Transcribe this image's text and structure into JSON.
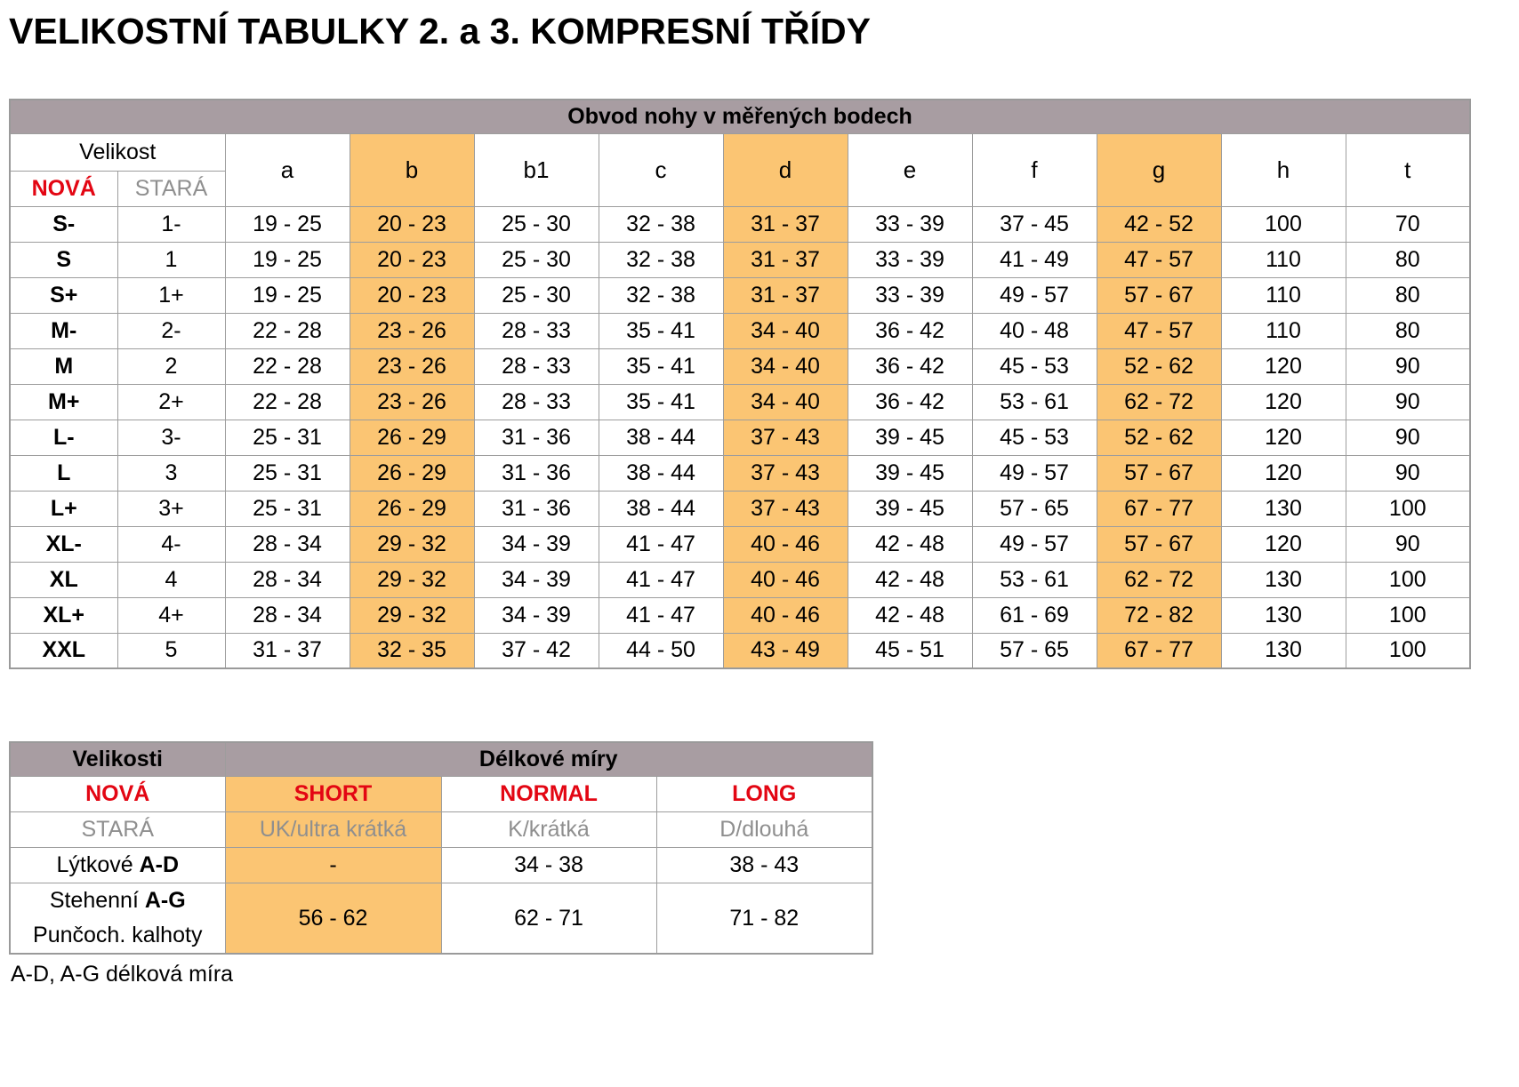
{
  "page": {
    "title": "VELIKOSTNÍ TABULKY 2. a 3. KOMPRESNÍ TŘÍDY",
    "footnote": "A-D, A-G délková míra"
  },
  "colors": {
    "header_bg": "#a89da2",
    "highlight_bg": "#fbc573",
    "accent_red": "#e30613",
    "muted_gray": "#8f8f8f",
    "grid_border": "#9d9d9d"
  },
  "size_table": {
    "caption": "Obvod nohy v měřených bodech",
    "velikost_label": "Velikost",
    "nova_label": "NOVÁ",
    "stara_label": "STARÁ",
    "measure_columns": [
      "a",
      "b",
      "b1",
      "c",
      "d",
      "e",
      "f",
      "g",
      "h",
      "t"
    ],
    "highlighted_columns": [
      "b",
      "d",
      "g"
    ],
    "rows": [
      {
        "nova": "S-",
        "stara": "1-",
        "values": [
          "19 - 25",
          "20 - 23",
          "25 - 30",
          "32 - 38",
          "31 - 37",
          "33 - 39",
          "37 - 45",
          "42 - 52",
          "100",
          "70"
        ]
      },
      {
        "nova": "S",
        "stara": "1",
        "values": [
          "19 - 25",
          "20 - 23",
          "25 - 30",
          "32 - 38",
          "31 - 37",
          "33 - 39",
          "41 - 49",
          "47 - 57",
          "110",
          "80"
        ]
      },
      {
        "nova": "S+",
        "stara": "1+",
        "values": [
          "19 - 25",
          "20 - 23",
          "25 - 30",
          "32 - 38",
          "31 - 37",
          "33 - 39",
          "49 - 57",
          "57 - 67",
          "110",
          "80"
        ]
      },
      {
        "nova": "M-",
        "stara": "2-",
        "values": [
          "22 - 28",
          "23 - 26",
          "28 - 33",
          "35 - 41",
          "34 - 40",
          "36 - 42",
          "40 - 48",
          "47 - 57",
          "110",
          "80"
        ]
      },
      {
        "nova": "M",
        "stara": "2",
        "values": [
          "22 - 28",
          "23 - 26",
          "28 - 33",
          "35 - 41",
          "34 - 40",
          "36 - 42",
          "45 - 53",
          "52 - 62",
          "120",
          "90"
        ]
      },
      {
        "nova": "M+",
        "stara": "2+",
        "values": [
          "22 - 28",
          "23 - 26",
          "28 - 33",
          "35 - 41",
          "34 - 40",
          "36 - 42",
          "53 - 61",
          "62 - 72",
          "120",
          "90"
        ]
      },
      {
        "nova": "L-",
        "stara": "3-",
        "values": [
          "25 - 31",
          "26 - 29",
          "31 - 36",
          "38 - 44",
          "37 - 43",
          "39 - 45",
          "45 - 53",
          "52 - 62",
          "120",
          "90"
        ]
      },
      {
        "nova": "L",
        "stara": "3",
        "values": [
          "25 - 31",
          "26 - 29",
          "31 - 36",
          "38 - 44",
          "37 - 43",
          "39 - 45",
          "49 - 57",
          "57 - 67",
          "120",
          "90"
        ]
      },
      {
        "nova": "L+",
        "stara": "3+",
        "values": [
          "25 - 31",
          "26 - 29",
          "31 - 36",
          "38 - 44",
          "37 - 43",
          "39 - 45",
          "57 - 65",
          "67 - 77",
          "130",
          "100"
        ]
      },
      {
        "nova": "XL-",
        "stara": "4-",
        "values": [
          "28 - 34",
          "29 - 32",
          "34 - 39",
          "41 - 47",
          "40 - 46",
          "42 - 48",
          "49 - 57",
          "57 - 67",
          "120",
          "90"
        ]
      },
      {
        "nova": "XL",
        "stara": "4",
        "values": [
          "28 - 34",
          "29 - 32",
          "34 - 39",
          "41 - 47",
          "40 - 46",
          "42 - 48",
          "53 - 61",
          "62 - 72",
          "130",
          "100"
        ]
      },
      {
        "nova": "XL+",
        "stara": "4+",
        "values": [
          "28 - 34",
          "29 - 32",
          "34 - 39",
          "41 - 47",
          "40 - 46",
          "42 - 48",
          "61 - 69",
          "72 - 82",
          "130",
          "100"
        ]
      },
      {
        "nova": "XXL",
        "stara": "5",
        "values": [
          "31 - 37",
          "32 - 35",
          "37 - 42",
          "44 - 50",
          "43 - 49",
          "45 - 51",
          "57 - 65",
          "67 - 77",
          "130",
          "100"
        ]
      }
    ]
  },
  "length_table": {
    "caption_left": "Velikosti",
    "caption_right": "Délkové míry",
    "new_row": {
      "label": "NOVÁ",
      "values": [
        "SHORT",
        "NORMAL",
        "LONG"
      ]
    },
    "old_row": {
      "label": "STARÁ",
      "values": [
        "UK/ultra krátká",
        "K/krátká",
        "D/dlouhá"
      ]
    },
    "calf_row": {
      "label_prefix": "Lýtkové ",
      "label_bold": "A-D",
      "values": [
        "-",
        "34 - 38",
        "38 - 43"
      ]
    },
    "thigh_row": {
      "label_prefix": "Stehenní ",
      "label_bold": "A-G",
      "label_line2": "Punčoch. kalhoty",
      "values": [
        "56 - 62",
        "62 - 71",
        "71 - 82"
      ]
    }
  }
}
